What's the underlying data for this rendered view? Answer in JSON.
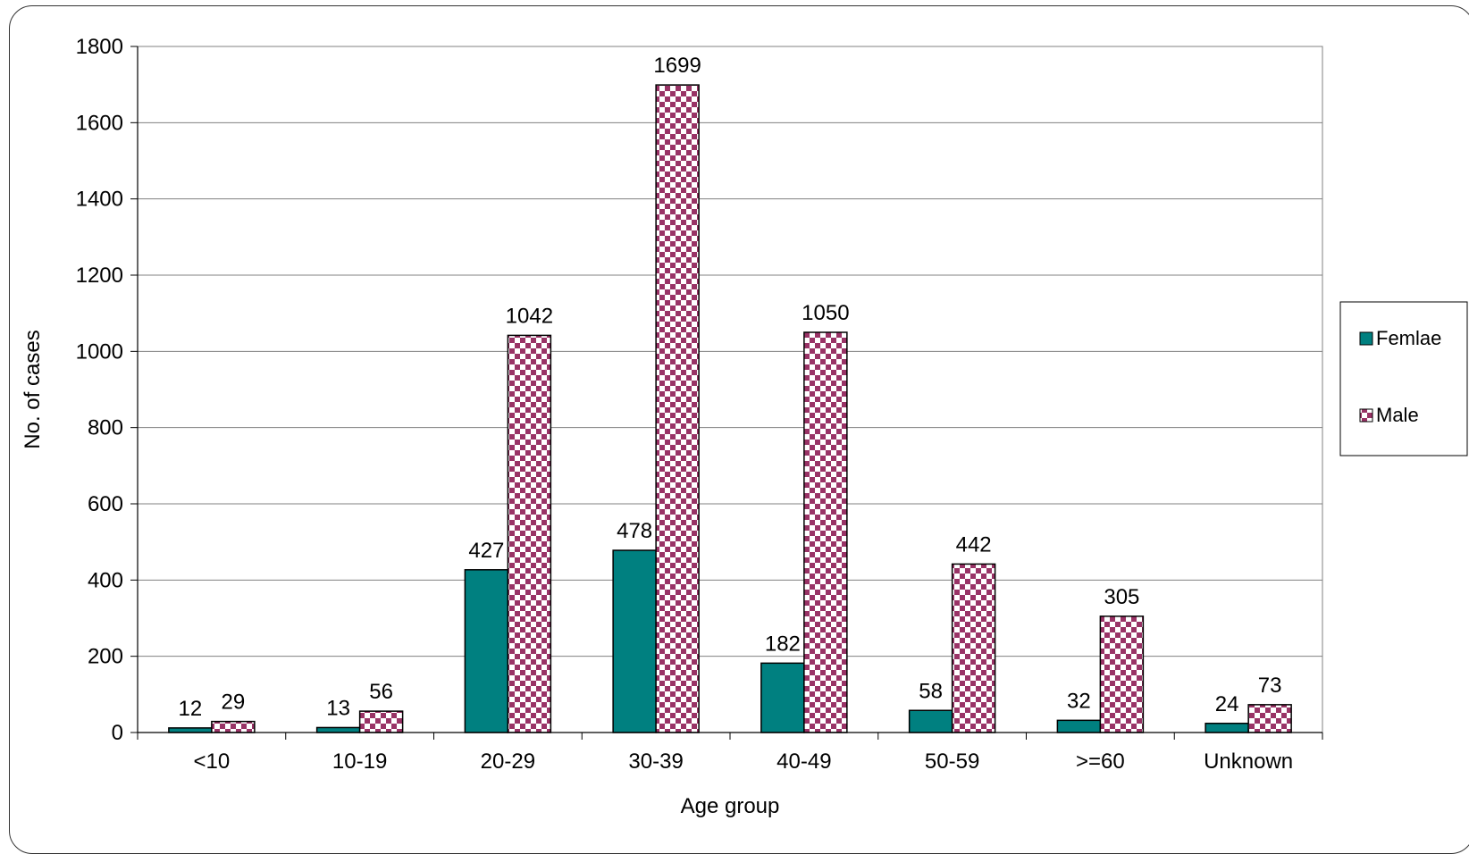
{
  "chart_data": {
    "type": "bar",
    "xlabel": "Age group",
    "ylabel": "No. of cases",
    "ylim": [
      0,
      1800
    ],
    "yticks": [
      0,
      200,
      400,
      600,
      800,
      1000,
      1200,
      1400,
      1600,
      1800
    ],
    "grid": true,
    "legend_position": "right",
    "categories": [
      "<10",
      "10-19",
      "20-29",
      "30-39",
      "40-49",
      "50-59",
      ">=60",
      "Unknown"
    ],
    "series": [
      {
        "name": "Femlae",
        "values": [
          12,
          13,
          427,
          478,
          182,
          58,
          32,
          24
        ],
        "color": "#008080",
        "pattern": "solid"
      },
      {
        "name": "Male",
        "values": [
          29,
          56,
          1042,
          1699,
          1050,
          442,
          305,
          73
        ],
        "color": "#993366",
        "pattern": "checkerboard"
      }
    ]
  }
}
